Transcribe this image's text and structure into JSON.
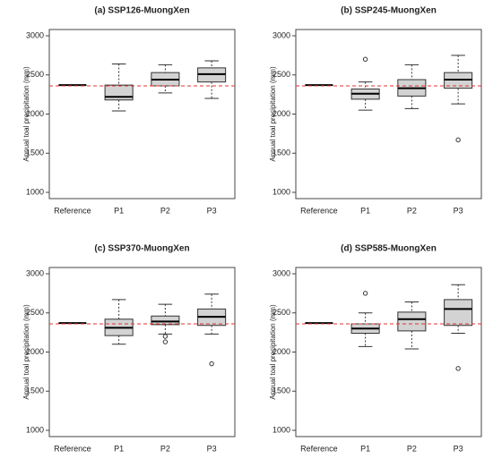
{
  "chart_data": [
    {
      "type": "box",
      "title": "(a) SSP126-MuongXen",
      "ylabel": "Annual toal precipitation (mm)",
      "categories": [
        "Reference",
        "P1",
        "P2",
        "P3"
      ],
      "boxes": [
        {
          "min": 2370,
          "q1": 2370,
          "median": 2370,
          "q3": 2370,
          "max": 2370,
          "outliers": []
        },
        {
          "min": 2040,
          "q1": 2180,
          "median": 2220,
          "q3": 2370,
          "max": 2640,
          "outliers": []
        },
        {
          "min": 2270,
          "q1": 2360,
          "median": 2440,
          "q3": 2530,
          "max": 2630,
          "outliers": []
        },
        {
          "min": 2200,
          "q1": 2410,
          "median": 2510,
          "q3": 2590,
          "max": 2680,
          "outliers": []
        }
      ],
      "reference_line": 2360,
      "reference_color": "#e53030",
      "box_color": "#d3d3d3",
      "ylim": [
        920,
        3080
      ],
      "yticks": [
        1000,
        1500,
        2000,
        2500,
        3000
      ]
    },
    {
      "type": "box",
      "title": "(b) SSP245-MuongXen",
      "ylabel": "Annual toal precipitation (mm)",
      "categories": [
        "Reference",
        "P1",
        "P2",
        "P3"
      ],
      "boxes": [
        {
          "min": 2370,
          "q1": 2370,
          "median": 2370,
          "q3": 2370,
          "max": 2370,
          "outliers": []
        },
        {
          "min": 2050,
          "q1": 2190,
          "median": 2260,
          "q3": 2320,
          "max": 2410,
          "outliers": [
            2700
          ]
        },
        {
          "min": 2070,
          "q1": 2230,
          "median": 2330,
          "q3": 2440,
          "max": 2630,
          "outliers": []
        },
        {
          "min": 2130,
          "q1": 2330,
          "median": 2440,
          "q3": 2530,
          "max": 2750,
          "outliers": [
            1670
          ]
        }
      ],
      "reference_line": 2360,
      "reference_color": "#e53030",
      "box_color": "#d3d3d3",
      "ylim": [
        920,
        3080
      ],
      "yticks": [
        1000,
        1500,
        2000,
        2500,
        3000
      ]
    },
    {
      "type": "box",
      "title": "(c) SSP370-MuongXen",
      "ylabel": "Annual toal precipitation (mm)",
      "categories": [
        "Reference",
        "P1",
        "P2",
        "P3"
      ],
      "boxes": [
        {
          "min": 2370,
          "q1": 2370,
          "median": 2370,
          "q3": 2370,
          "max": 2370,
          "outliers": []
        },
        {
          "min": 2100,
          "q1": 2210,
          "median": 2310,
          "q3": 2420,
          "max": 2670,
          "outliers": []
        },
        {
          "min": 2230,
          "q1": 2350,
          "median": 2390,
          "q3": 2460,
          "max": 2610,
          "outliers": [
            2200,
            2130
          ]
        },
        {
          "min": 2230,
          "q1": 2340,
          "median": 2450,
          "q3": 2550,
          "max": 2740,
          "outliers": [
            1850
          ]
        }
      ],
      "reference_line": 2360,
      "reference_color": "#e53030",
      "box_color": "#d3d3d3",
      "ylim": [
        920,
        3080
      ],
      "yticks": [
        1000,
        1500,
        2000,
        2500,
        3000
      ]
    },
    {
      "type": "box",
      "title": "(d) SSP585-MuongXen",
      "ylabel": "Annual toal precipitation (mm)",
      "categories": [
        "Reference",
        "P1",
        "P2",
        "P3"
      ],
      "boxes": [
        {
          "min": 2370,
          "q1": 2370,
          "median": 2370,
          "q3": 2370,
          "max": 2370,
          "outliers": []
        },
        {
          "min": 2070,
          "q1": 2240,
          "median": 2300,
          "q3": 2360,
          "max": 2500,
          "outliers": [
            2750
          ]
        },
        {
          "min": 2040,
          "q1": 2270,
          "median": 2420,
          "q3": 2510,
          "max": 2640,
          "outliers": []
        },
        {
          "min": 2240,
          "q1": 2340,
          "median": 2550,
          "q3": 2670,
          "max": 2860,
          "outliers": [
            1790
          ]
        }
      ],
      "reference_line": 2360,
      "reference_color": "#e53030",
      "box_color": "#d3d3d3",
      "ylim": [
        920,
        3080
      ],
      "yticks": [
        1000,
        1500,
        2000,
        2500,
        3000
      ]
    }
  ]
}
